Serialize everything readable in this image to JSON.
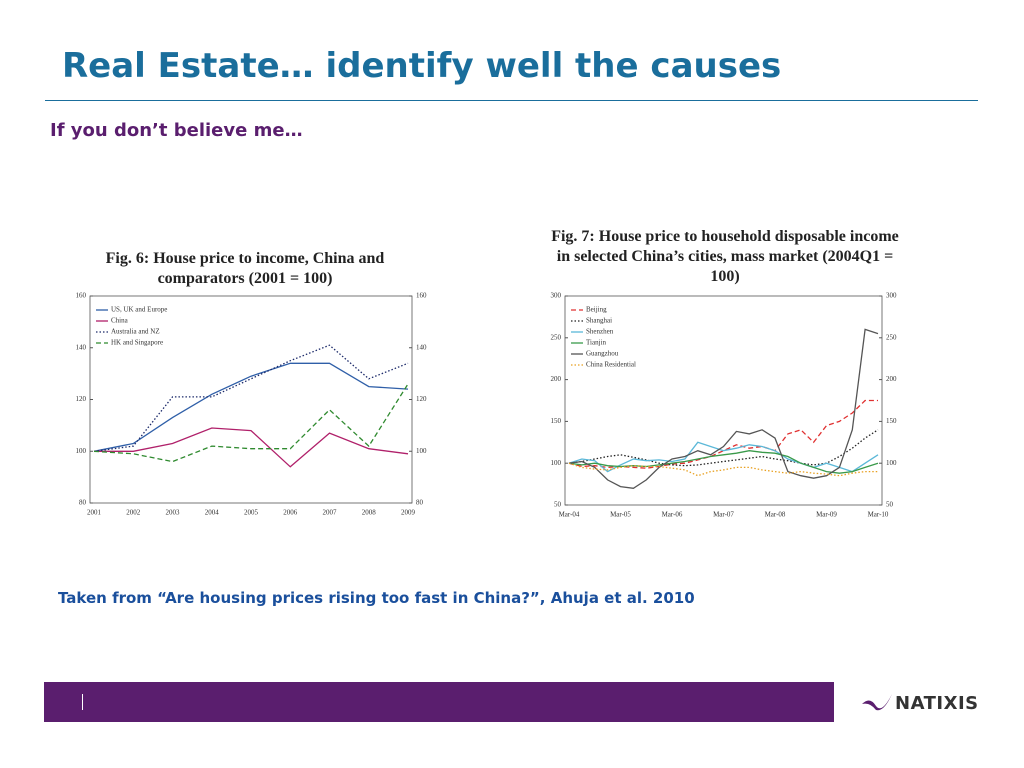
{
  "title": "Real Estate… identify well the causes",
  "subtitle": "If you don’t believe me…",
  "caption": "Taken from “Are housing prices rising too fast in China?”, Ahuja et al. 2010",
  "logo": "NATIXIS",
  "chart_data": [
    {
      "type": "line",
      "title": "Fig. 6: House price to income, China and comparators (2001 = 100)",
      "categories": [
        "2001",
        "2002",
        "2003",
        "2004",
        "2005",
        "2006",
        "2007",
        "2008",
        "2009"
      ],
      "ylim": [
        80,
        160
      ],
      "yticks": [
        80,
        100,
        120,
        140,
        160
      ],
      "y2lim": [
        80,
        160
      ],
      "y2ticks": [
        80,
        100,
        120,
        140,
        160
      ],
      "legend": "upper left",
      "series": [
        {
          "name": "US, UK and Europe",
          "color": "#2f5fa8",
          "dash": "solid",
          "values": [
            100,
            103,
            113,
            122,
            129,
            134,
            134,
            125,
            124
          ]
        },
        {
          "name": "China",
          "color": "#b0206a",
          "dash": "solid",
          "values": [
            100,
            100,
            103,
            109,
            108,
            94,
            107,
            101,
            99
          ]
        },
        {
          "name": "Australia and NZ",
          "color": "#1c2a6a",
          "dash": "dotted",
          "values": [
            100,
            102,
            121,
            121,
            128,
            135,
            141,
            128,
            134
          ]
        },
        {
          "name": "HK and Singapore",
          "color": "#2f8a2f",
          "dash": "dashed",
          "values": [
            100,
            99,
            96,
            102,
            101,
            101,
            116,
            102,
            126
          ]
        }
      ]
    },
    {
      "type": "line",
      "title": "Fig. 7: House price to household disposable income in selected China’s cities, mass market (2004Q1 = 100)",
      "categories": [
        "Mar-04",
        null,
        null,
        null,
        "Mar-05",
        null,
        null,
        null,
        "Mar-06",
        null,
        null,
        null,
        "Mar-07",
        null,
        null,
        null,
        "Mar-08",
        null,
        null,
        null,
        "Mar-09",
        null,
        null,
        null,
        "Mar-10"
      ],
      "ylim": [
        50,
        300
      ],
      "yticks": [
        50,
        100,
        150,
        200,
        250,
        300
      ],
      "y2lim": [
        50,
        300
      ],
      "y2ticks": [
        50,
        100,
        150,
        200,
        250,
        300
      ],
      "legend": "upper left",
      "series": [
        {
          "name": "Beijing",
          "color": "#e03030",
          "dash": "dashed",
          "values": [
            100,
            96,
            97,
            95,
            96,
            95,
            94,
            96,
            99,
            100,
            104,
            108,
            115,
            122,
            118,
            120,
            115,
            135,
            140,
            125,
            145,
            150,
            160,
            175,
            175
          ]
        },
        {
          "name": "Shanghai",
          "color": "#222222",
          "dash": "dotted",
          "values": [
            100,
            102,
            105,
            108,
            110,
            107,
            104,
            100,
            98,
            97,
            98,
            100,
            102,
            104,
            106,
            108,
            105,
            103,
            100,
            98,
            100,
            108,
            118,
            130,
            140
          ]
        },
        {
          "name": "Shenzhen",
          "color": "#5bb8d8",
          "dash": "solid",
          "values": [
            100,
            105,
            103,
            90,
            98,
            105,
            103,
            104,
            102,
            105,
            125,
            120,
            115,
            118,
            122,
            120,
            115,
            105,
            100,
            95,
            100,
            95,
            90,
            100,
            110
          ]
        },
        {
          "name": "Tianjin",
          "color": "#3a9a4a",
          "dash": "solid",
          "values": [
            100,
            98,
            100,
            97,
            96,
            97,
            96,
            98,
            100,
            102,
            105,
            108,
            110,
            112,
            115,
            113,
            112,
            108,
            100,
            95,
            90,
            88,
            90,
            95,
            100
          ]
        },
        {
          "name": "Guangzhou",
          "color": "#555555",
          "dash": "solid",
          "values": [
            100,
            102,
            95,
            80,
            72,
            70,
            80,
            95,
            105,
            108,
            115,
            110,
            120,
            138,
            135,
            140,
            130,
            90,
            85,
            82,
            85,
            95,
            140,
            260,
            255
          ]
        },
        {
          "name": "China Residential",
          "color": "#e8a020",
          "dash": "dotted",
          "values": [
            100,
            95,
            93,
            92,
            95,
            97,
            96,
            96,
            94,
            92,
            85,
            90,
            92,
            95,
            95,
            92,
            90,
            88,
            90,
            88,
            87,
            85,
            88,
            90,
            90
          ]
        }
      ]
    }
  ]
}
